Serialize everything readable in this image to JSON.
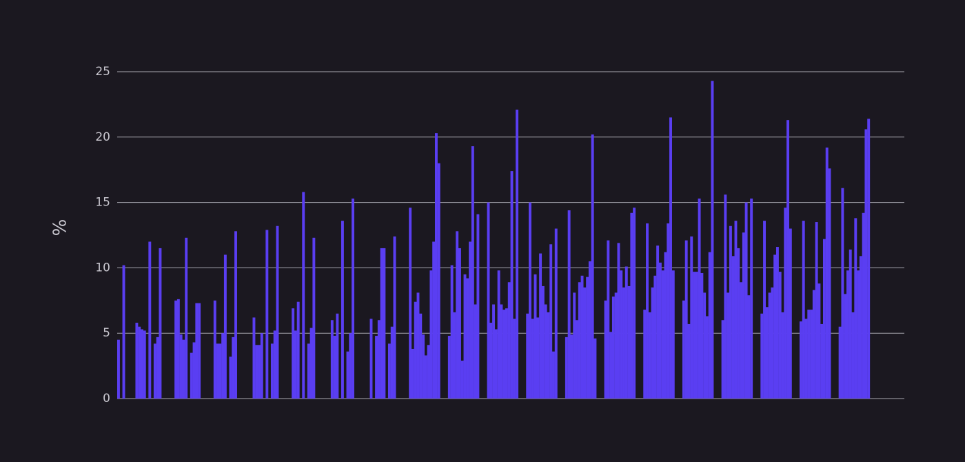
{
  "chart_data": {
    "type": "bar",
    "ylabel": "%",
    "color": "#5a3ef2",
    "ylim": [
      0,
      25
    ],
    "yticks": [
      0,
      5,
      10,
      15,
      20,
      25
    ],
    "grid": true,
    "values": [
      4.5,
      0,
      10.2,
      0,
      0,
      0,
      0,
      5.8,
      5.5,
      5.3,
      5.2,
      0,
      12,
      0,
      4.2,
      4.7,
      11.5,
      0,
      0,
      0,
      0,
      0,
      7.5,
      7.6,
      4.9,
      4.5,
      12.3,
      0,
      3.5,
      4.3,
      7.3,
      7.3,
      0,
      0,
      0,
      0,
      0,
      7.5,
      4.2,
      4.2,
      5,
      11,
      0,
      3.2,
      4.7,
      12.8,
      0,
      0,
      0,
      0,
      0,
      0,
      6.2,
      4.1,
      4.1,
      5,
      0,
      12.9,
      0,
      4.2,
      5.2,
      13.2,
      0,
      0,
      0,
      0,
      0,
      6.9,
      5.2,
      7.4,
      0,
      15.8,
      0,
      4.2,
      5.4,
      12.3,
      0,
      0,
      0,
      0,
      0,
      0,
      6,
      4.8,
      6.5,
      0,
      13.6,
      0,
      3.6,
      5,
      15.3,
      0,
      0,
      0,
      0,
      0,
      0,
      6.1,
      0,
      4.8,
      6,
      11.5,
      11.5,
      0,
      4.2,
      5.5,
      12.4,
      0,
      0,
      0,
      0,
      0,
      14.6,
      3.8,
      7.4,
      8.1,
      6.5,
      4.9,
      3.3,
      4.1,
      9.8,
      12,
      20.3,
      18,
      0,
      0,
      0,
      4.8,
      10.2,
      6.6,
      12.8,
      11.5,
      2.9,
      9.5,
      9.2,
      12,
      19.3,
      7.2,
      14.1,
      0,
      0,
      0,
      15,
      5.8,
      7.2,
      5.3,
      9.8,
      7.2,
      6.8,
      6.9,
      8.9,
      17.4,
      6.1,
      22.1,
      0,
      0,
      0,
      6.5,
      15,
      6.1,
      9.5,
      6.2,
      11.1,
      8.6,
      7.2,
      6.6,
      11.8,
      3.6,
      13,
      0,
      0,
      0,
      4.7,
      14.4,
      4.9,
      8.1,
      6,
      8.9,
      9.4,
      8.5,
      9.3,
      10.5,
      20.2,
      4.6,
      0,
      0,
      0,
      7.5,
      12.1,
      5.1,
      7.8,
      8.1,
      11.9,
      9.8,
      8.5,
      10.1,
      8.6,
      14.2,
      14.6,
      0,
      0,
      0,
      6.8,
      13.4,
      6.6,
      8.5,
      9.4,
      11.7,
      10.4,
      9.8,
      11.2,
      13.4,
      21.5,
      9.8,
      0,
      0,
      0,
      7.5,
      12.1,
      5.7,
      12.4,
      9.7,
      9.7,
      15.3,
      9.6,
      8.1,
      6.3,
      11.2,
      24.3,
      0,
      0,
      0,
      6,
      15.6,
      8.1,
      13.2,
      10.9,
      13.6,
      11.5,
      8.9,
      12.7,
      15,
      7.9,
      15.3,
      0,
      0,
      0,
      6.5,
      13.6,
      7,
      8.1,
      8.5,
      11,
      11.6,
      9.7,
      6.6,
      14.6,
      21.3,
      13,
      0,
      0,
      0,
      5.9,
      13.6,
      6.1,
      6.8,
      6.8,
      8.3,
      13.5,
      8.8,
      5.7,
      12.2,
      19.2,
      17.6,
      0,
      0,
      0,
      5.5,
      16.1,
      8,
      9.8,
      11.4,
      6.6,
      13.8,
      9.8,
      10.9,
      14.2,
      20.6,
      21.4
    ]
  }
}
